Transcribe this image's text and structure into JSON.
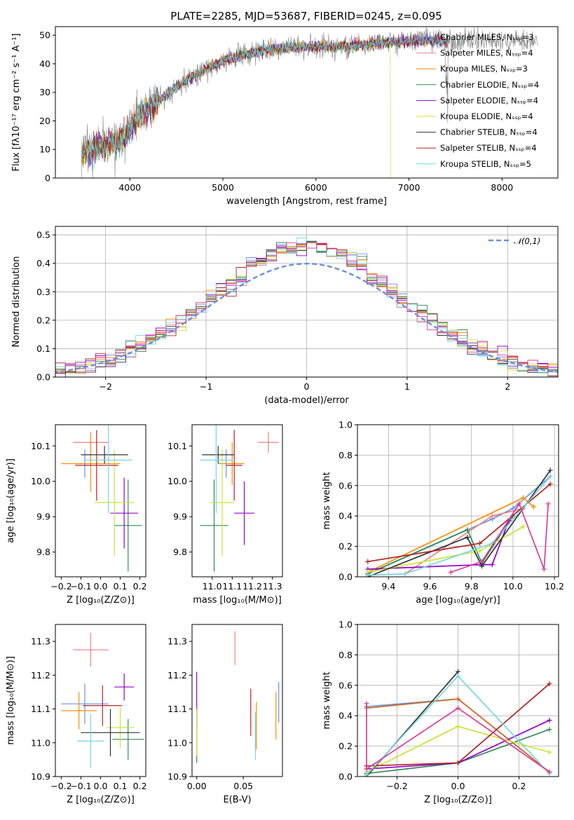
{
  "title": "PLATE=2285, MJD=53687, FIBERID=0245, z=0.095",
  "colors": [
    "#6495ed",
    "#f08080",
    "#ff8c00",
    "#2e8b57",
    "#9400d3",
    "#c8e632",
    "#333333",
    "#b22222",
    "#76d7e0",
    "#dc3c96",
    "#d2691e",
    "#228b22"
  ],
  "chart_data": [
    {
      "id": "spectrum",
      "type": "line",
      "xlabel": "wavelength [Angstrom, rest frame]",
      "ylabel": "Flux [fλ10⁻¹⁷ erg cm⁻² s⁻¹ A⁻¹]",
      "xlim": [
        3200,
        8600
      ],
      "ylim": [
        0,
        53
      ],
      "xticks": [
        4000,
        5000,
        6000,
        7000,
        8000
      ],
      "yticks": [
        0,
        10,
        20,
        30,
        40,
        50
      ],
      "grid": false,
      "legend": "right",
      "series": [
        {
          "name": "Chabrier MILES, Nₛₛₚ=3"
        },
        {
          "name": "Salpeter MILES, Nₛₛₚ=4"
        },
        {
          "name": "Kroupa MILES, Nₛₛₚ=3"
        },
        {
          "name": "Chabrier ELODIE, Nₛₛₚ=4"
        },
        {
          "name": "Salpeter ELODIE, Nₛₛₚ=4"
        },
        {
          "name": "Kroupa ELODIE, Nₛₛₚ=4"
        },
        {
          "name": "Chabrier STELIB, Nₛₛₚ=4"
        },
        {
          "name": "Salpeter STELIB, Nₛₛₚ=4"
        },
        {
          "name": "Kroupa STELIB, Nₛₛₚ=5"
        }
      ],
      "continuum_x": [
        3500,
        3700,
        3950,
        4000,
        4300,
        4500,
        4800,
        5000,
        5200,
        5500,
        5800,
        6000,
        6300,
        6600,
        7000,
        7400
      ],
      "continuum_y": [
        9,
        11,
        14,
        18,
        27,
        32,
        38,
        41,
        43,
        45,
        46,
        46,
        46,
        47,
        48,
        48
      ]
    },
    {
      "id": "residuals",
      "type": "step",
      "xlabel": "(data-model)/error",
      "ylabel": "Normed distribution",
      "xlim": [
        -2.5,
        2.5
      ],
      "ylim": [
        0,
        0.53
      ],
      "xticks": [
        -2,
        -1,
        0,
        1,
        2
      ],
      "yticks": [
        0.0,
        0.1,
        0.2,
        0.3,
        0.4,
        0.5
      ],
      "grid": true,
      "legend": "top-right",
      "reference": {
        "name": "𝒩(0,1)"
      }
    },
    {
      "id": "age_vs_Z",
      "type": "errorbar",
      "xlabel": "Z [log₁₀(Z/Z⊙)]",
      "ylabel": "age  [log₁₀(age/yr)]",
      "xlim": [
        -0.23,
        0.23
      ],
      "ylim": [
        9.73,
        10.16
      ],
      "xticks": [
        -0.2,
        -0.1,
        0.0,
        0.1,
        0.2
      ],
      "yticks": [
        9.8,
        9.9,
        10.0,
        10.1
      ],
      "points": [
        {
          "x": -0.08,
          "y": 10.05,
          "xe": 0.04,
          "ye": 0.04,
          "c": 0
        },
        {
          "x": -0.05,
          "y": 10.11,
          "xe": 0.09,
          "ye": 0.03,
          "c": 1
        },
        {
          "x": -0.05,
          "y": 10.05,
          "xe": 0.15,
          "ye": 0.08,
          "c": 2
        },
        {
          "x": 0.14,
          "y": 9.875,
          "xe": 0.07,
          "ye": 0.13,
          "c": 3
        },
        {
          "x": 0.12,
          "y": 9.91,
          "xe": 0.07,
          "ye": 0.1,
          "c": 4
        },
        {
          "x": 0.07,
          "y": 9.94,
          "xe": 0.1,
          "ye": 0.15,
          "c": 5
        },
        {
          "x": 0.02,
          "y": 10.075,
          "xe": 0.12,
          "ye": 0.025,
          "c": 6
        },
        {
          "x": -0.02,
          "y": 10.045,
          "xe": 0.11,
          "ye": 0.1,
          "c": 7
        },
        {
          "x": 0.04,
          "y": 10.06,
          "xe": 0.12,
          "ye": 0.15,
          "c": 8
        }
      ]
    },
    {
      "id": "age_vs_mass",
      "type": "errorbar",
      "xlabel": "mass [log₁₀(M/M⊙)]",
      "ylabel": "",
      "xlim": [
        10.9,
        11.35
      ],
      "ylim": [
        9.73,
        10.16
      ],
      "xticks": [
        11.0,
        11.1,
        11.2,
        11.3
      ],
      "yticks": [
        9.8,
        9.9,
        10.0,
        10.1
      ],
      "points": [
        {
          "x": 11.07,
          "y": 10.05,
          "xe": 0.04,
          "ye": 0.04,
          "c": 0
        },
        {
          "x": 11.28,
          "y": 10.11,
          "xe": 0.05,
          "ye": 0.03,
          "c": 1
        },
        {
          "x": 11.1,
          "y": 10.05,
          "xe": 0.06,
          "ye": 0.06,
          "c": 2
        },
        {
          "x": 11.01,
          "y": 9.875,
          "xe": 0.07,
          "ye": 0.13,
          "c": 3
        },
        {
          "x": 11.16,
          "y": 9.91,
          "xe": 0.05,
          "ye": 0.09,
          "c": 4
        },
        {
          "x": 11.05,
          "y": 9.94,
          "xe": 0.06,
          "ye": 0.15,
          "c": 5
        },
        {
          "x": 11.03,
          "y": 10.075,
          "xe": 0.08,
          "ye": 0.025,
          "c": 6
        },
        {
          "x": 11.11,
          "y": 10.045,
          "xe": 0.04,
          "ye": 0.1,
          "c": 7
        },
        {
          "x": 11.02,
          "y": 10.06,
          "xe": 0.08,
          "ye": 0.15,
          "c": 8
        }
      ]
    },
    {
      "id": "weight_vs_age",
      "type": "line",
      "xlabel": "age  [log₁₀(age/yr)]",
      "ylabel": "mass weight",
      "xlim": [
        9.25,
        10.22
      ],
      "ylim": [
        0,
        1
      ],
      "xticks": [
        9.4,
        9.6,
        9.8,
        10.0,
        10.2
      ],
      "yticks": [
        0.0,
        0.2,
        0.4,
        0.6,
        0.8,
        1.0
      ],
      "grid": true,
      "series": [
        {
          "c": 0,
          "x": [
            9.3,
            9.9,
            10.0,
            10.18
          ],
          "y": [
            0.02,
            0.38,
            0.45,
            0.66
          ]
        },
        {
          "c": 1,
          "x": [
            9.3,
            9.48,
            9.9,
            10.05
          ],
          "y": [
            0.01,
            0.02,
            0.4,
            0.45
          ]
        },
        {
          "c": 2,
          "x": [
            9.3,
            10.05,
            10.1
          ],
          "y": [
            0.03,
            0.52,
            0.46
          ]
        },
        {
          "c": 3,
          "x": [
            9.3,
            9.78,
            9.85,
            10.0
          ],
          "y": [
            0.02,
            0.31,
            0.09,
            0.4
          ]
        },
        {
          "c": 4,
          "x": [
            9.3,
            9.85,
            9.9,
            9.98
          ],
          "y": [
            0.05,
            0.08,
            0.08,
            0.37
          ]
        },
        {
          "c": 5,
          "x": [
            9.3,
            9.84,
            10.05
          ],
          "y": [
            0.03,
            0.17,
            0.33
          ]
        },
        {
          "c": 6,
          "x": [
            9.3,
            9.78,
            9.85,
            10.18
          ],
          "y": [
            0.0,
            0.26,
            0.07,
            0.7
          ]
        },
        {
          "c": 7,
          "x": [
            9.3,
            9.84,
            10.18
          ],
          "y": [
            0.1,
            0.22,
            0.61
          ]
        },
        {
          "c": 8,
          "x": [
            9.3,
            9.48,
            9.9,
            10.18
          ],
          "y": [
            0.01,
            0.02,
            0.22,
            0.66
          ]
        },
        {
          "c": 9,
          "x": [
            9.7,
            9.85,
            10.03,
            10.15,
            10.17
          ],
          "y": [
            0.03,
            0.1,
            0.48,
            0.05,
            0.48
          ]
        }
      ]
    },
    {
      "id": "mass_vs_Z",
      "type": "errorbar",
      "xlabel": "Z [log₁₀(Z/Z⊙)]",
      "ylabel": "mass [log₁₀(M/M⊙)]",
      "xlim": [
        -0.23,
        0.23
      ],
      "ylim": [
        10.9,
        11.35
      ],
      "xticks": [
        -0.2,
        -0.1,
        0.0,
        0.1,
        0.2
      ],
      "yticks": [
        10.9,
        11.0,
        11.1,
        11.2,
        11.3
      ],
      "points": [
        {
          "x": -0.08,
          "y": 11.115,
          "xe": 0.12,
          "ye": 0.06,
          "c": 0
        },
        {
          "x": -0.05,
          "y": 11.275,
          "xe": 0.09,
          "ye": 0.05,
          "c": 1
        },
        {
          "x": -0.11,
          "y": 11.095,
          "xe": 0.09,
          "ye": 0.055,
          "c": 2
        },
        {
          "x": 0.14,
          "y": 11.01,
          "xe": 0.08,
          "ye": 0.06,
          "c": 3
        },
        {
          "x": 0.12,
          "y": 11.165,
          "xe": 0.05,
          "ye": 0.04,
          "c": 4
        },
        {
          "x": 0.1,
          "y": 11.045,
          "xe": 0.07,
          "ye": 0.06,
          "c": 5
        },
        {
          "x": 0.05,
          "y": 11.03,
          "xe": 0.15,
          "ye": 0.07,
          "c": 6
        },
        {
          "x": 0.01,
          "y": 11.11,
          "xe": 0.1,
          "ye": 0.06,
          "c": 7
        },
        {
          "x": -0.05,
          "y": 11.005,
          "xe": 0.07,
          "ye": 0.08,
          "c": 8
        }
      ]
    },
    {
      "id": "mass_vs_EBV",
      "type": "errorbar",
      "xlabel": "E(B-V)",
      "ylabel": "",
      "xlim": [
        -0.005,
        0.092
      ],
      "ylim": [
        10.9,
        11.35
      ],
      "xticks": [
        0.0,
        0.05
      ],
      "yticks": [
        10.9,
        11.0,
        11.1,
        11.2,
        11.3
      ],
      "points": [
        {
          "x": 0.0,
          "y": 11.02,
          "xe": 0,
          "ye": 0.08,
          "c": 3
        },
        {
          "x": 0.0,
          "y": 11.13,
          "xe": 0,
          "ye": 0.08,
          "c": 4
        },
        {
          "x": 0.0,
          "y": 11.03,
          "xe": 0,
          "ye": 0.07,
          "c": 5
        },
        {
          "x": 0.041,
          "y": 11.28,
          "xe": 0,
          "ye": 0.05,
          "c": 1
        },
        {
          "x": 0.058,
          "y": 11.09,
          "xe": 0,
          "ye": 0.07,
          "c": 7
        },
        {
          "x": 0.063,
          "y": 11.02,
          "xe": 0,
          "ye": 0.07,
          "c": 8
        },
        {
          "x": 0.064,
          "y": 11.05,
          "xe": 0,
          "ye": 0.07,
          "c": 2
        },
        {
          "x": 0.085,
          "y": 11.08,
          "xe": 0,
          "ye": 0.07,
          "c": 2
        },
        {
          "x": 0.088,
          "y": 11.12,
          "xe": 0,
          "ye": 0.06,
          "c": 0
        }
      ]
    },
    {
      "id": "weight_vs_Z",
      "type": "line",
      "xlabel": "Z [log₁₀(Z/Z⊙)]",
      "ylabel": "mass weight",
      "xlim": [
        -0.33,
        0.33
      ],
      "ylim": [
        0,
        1
      ],
      "xticks": [
        -0.2,
        0.0,
        0.2
      ],
      "yticks": [
        0.0,
        0.2,
        0.4,
        0.6,
        0.8,
        1.0
      ],
      "grid": true,
      "series": [
        {
          "c": 0,
          "x": [
            -0.3,
            0.0,
            0.3
          ],
          "y": [
            0.46,
            0.51,
            0.03
          ]
        },
        {
          "c": 10,
          "x": [
            -0.3,
            0.0,
            0.3
          ],
          "y": [
            0.45,
            0.51,
            0.03
          ]
        },
        {
          "c": 3,
          "x": [
            -0.3,
            0.0,
            0.3
          ],
          "y": [
            0.02,
            0.09,
            0.31
          ]
        },
        {
          "c": 4,
          "x": [
            -0.3,
            0.0,
            0.3
          ],
          "y": [
            0.05,
            0.09,
            0.37
          ]
        },
        {
          "c": 5,
          "x": [
            -0.3,
            0.0,
            0.3
          ],
          "y": [
            0.03,
            0.33,
            0.16
          ]
        },
        {
          "c": 6,
          "x": [
            -0.3,
            0.0
          ],
          "y": [
            0.0,
            0.69
          ]
        },
        {
          "c": 7,
          "x": [
            -0.3,
            0.0,
            0.3
          ],
          "y": [
            0.07,
            0.09,
            0.61
          ]
        },
        {
          "c": 8,
          "x": [
            -0.3,
            0.0,
            0.3
          ],
          "y": [
            0.01,
            0.66,
            0.02
          ]
        },
        {
          "c": 9,
          "x": [
            -0.3,
            -0.3,
            0.0,
            0.3
          ],
          "y": [
            0.48,
            0.05,
            0.45,
            0.03
          ]
        }
      ]
    }
  ]
}
